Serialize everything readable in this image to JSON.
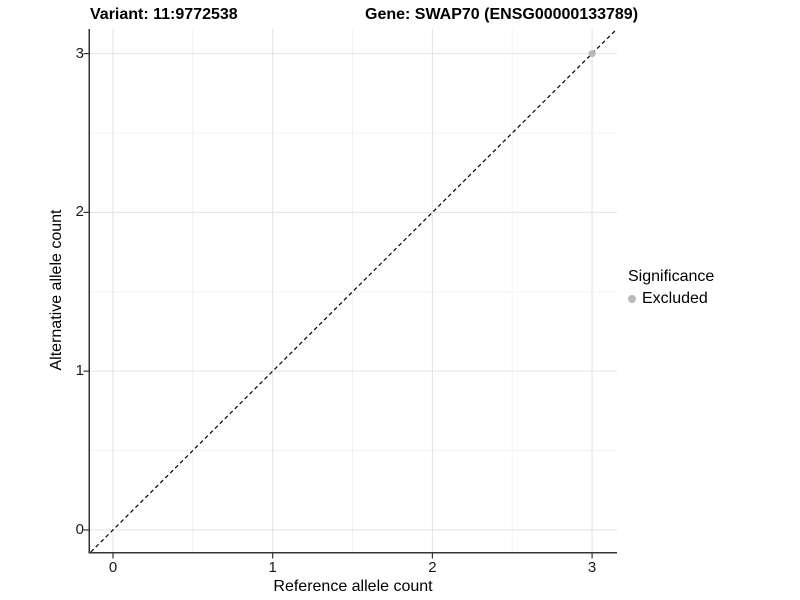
{
  "title": {
    "variant": "Variant: 11:9772538",
    "gene": "Gene: SWAP70 (ENSG00000133789)"
  },
  "chart_data": {
    "type": "scatter",
    "xlabel": "Reference allele count",
    "ylabel": "Alternative allele count",
    "xticks": [
      0,
      1,
      2,
      3
    ],
    "yticks": [
      0,
      1,
      2,
      3
    ],
    "minor_xticks": [
      0.5,
      1.5,
      2.5
    ],
    "minor_yticks": [
      0.5,
      1.5,
      2.5
    ],
    "xlim": [
      -0.144,
      3.156
    ],
    "ylim": [
      -0.139,
      3.155
    ],
    "grid": "on",
    "legend_position": "right",
    "points": [
      {
        "x": 3,
        "y": 3,
        "significance": "Excluded"
      }
    ],
    "reference_line": {
      "type": "identity",
      "slope": 1,
      "intercept": 0,
      "style": "dashed"
    },
    "legend": {
      "title": "Significance",
      "items": [
        {
          "label": "Excluded",
          "color": "#b9b9b9"
        }
      ]
    },
    "colors": {
      "point": "#b9b9b9",
      "grid_major": "#e3e3e3",
      "grid_minor": "#f2f2f2",
      "axis": "#333333",
      "dashed_line": "#000000"
    }
  }
}
